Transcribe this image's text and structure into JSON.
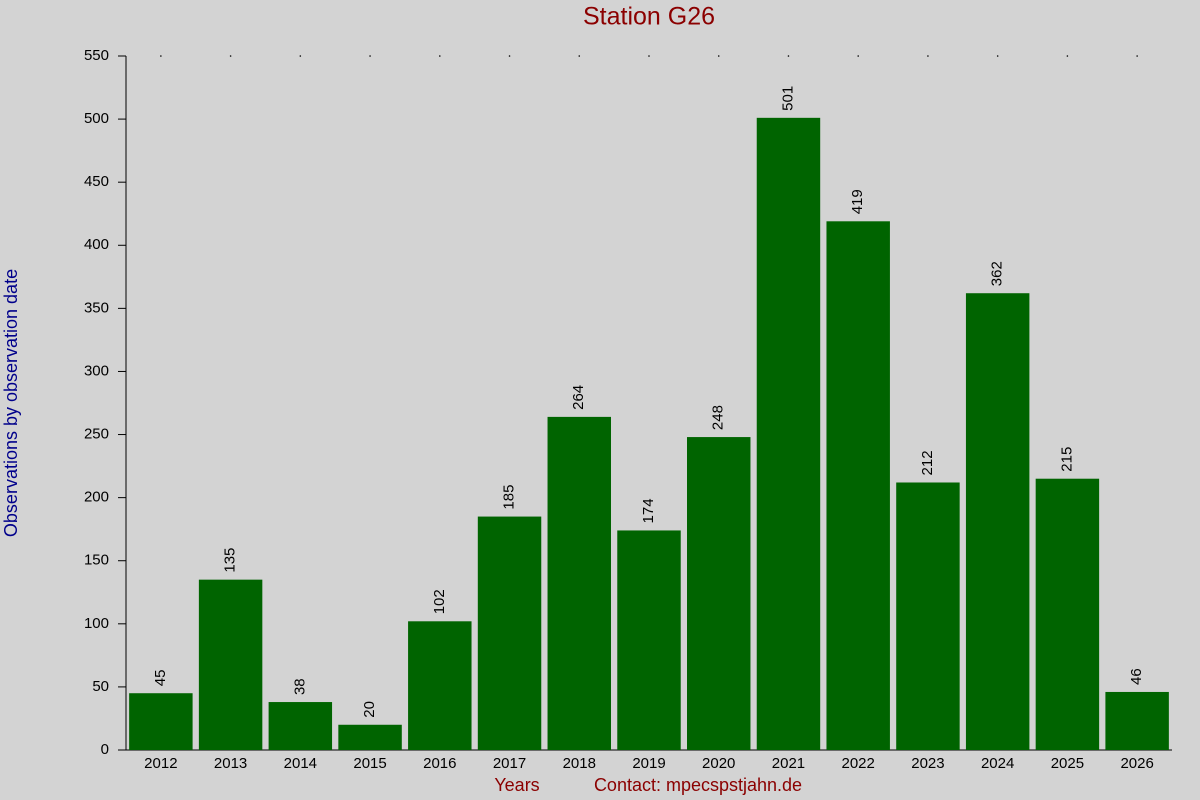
{
  "chart_data": {
    "type": "bar",
    "title": "Station G26",
    "ylabel": "Observations by observation date",
    "xlabel": "Years",
    "annotations": [
      "Contact: mpecspstjahn.de"
    ],
    "categories": [
      "2012",
      "2013",
      "2014",
      "2015",
      "2016",
      "2017",
      "2018",
      "2019",
      "2020",
      "2021",
      "2022",
      "2023",
      "2024",
      "2025",
      "2026"
    ],
    "values": [
      45,
      135,
      38,
      20,
      102,
      185,
      264,
      174,
      248,
      501,
      419,
      212,
      362,
      215,
      46
    ],
    "color": "#006400",
    "ylim": [
      0,
      550
    ],
    "yticks": [
      0,
      50,
      100,
      150,
      200,
      250,
      300,
      350,
      400,
      450,
      500,
      550
    ],
    "grid": false,
    "value_labels_rotated": true
  }
}
